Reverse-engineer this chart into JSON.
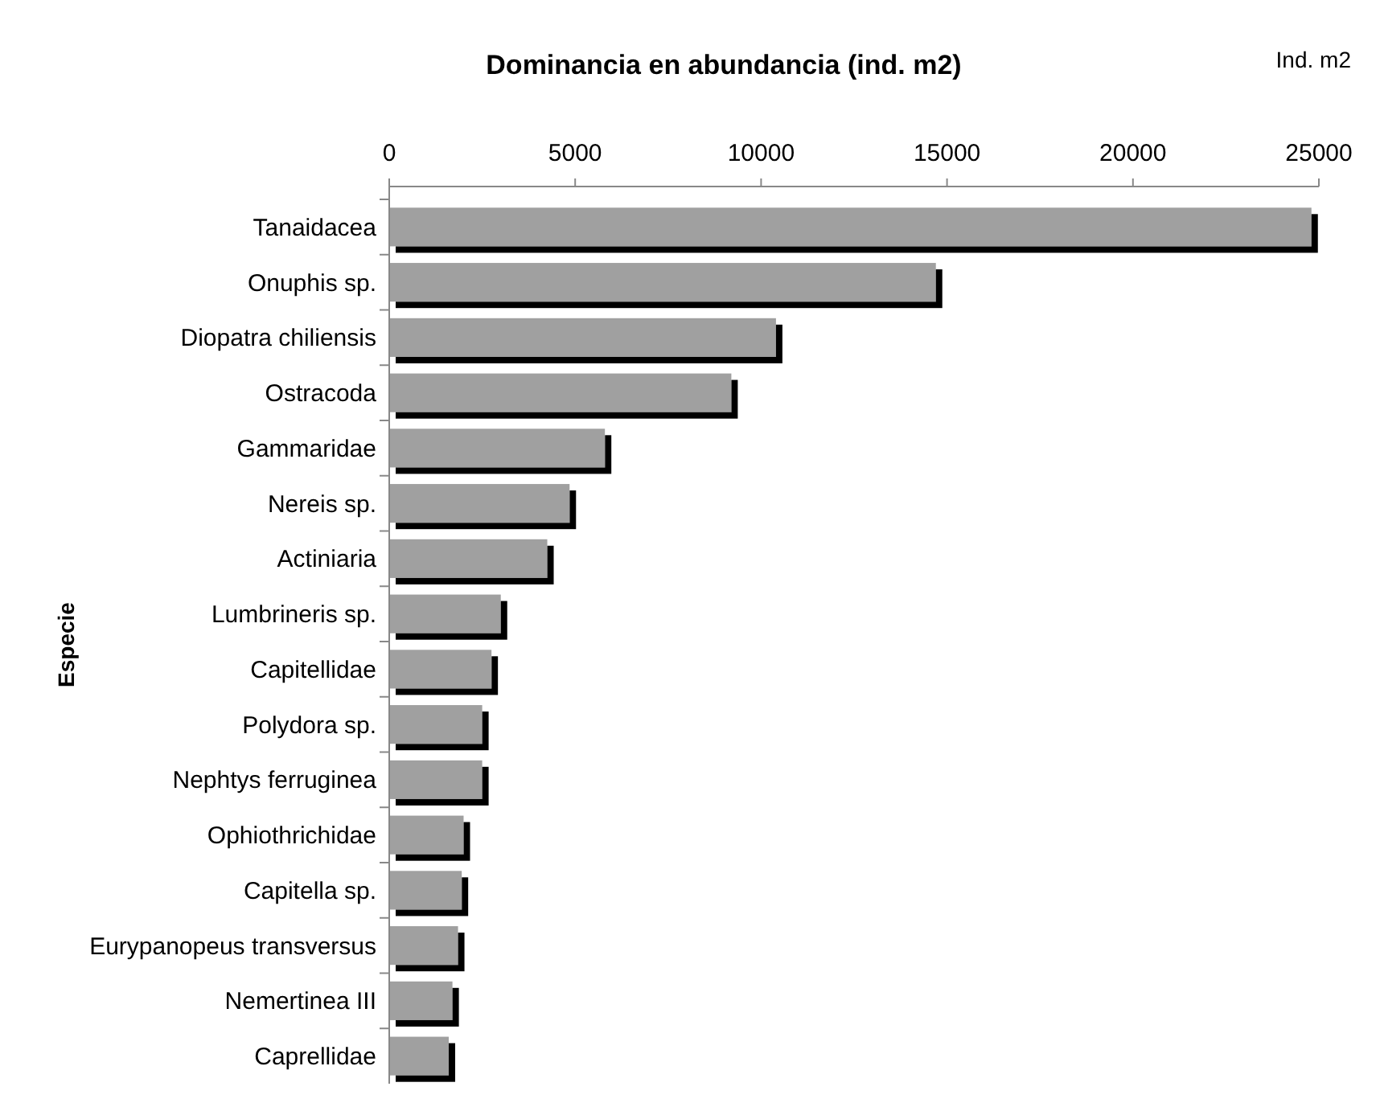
{
  "chart_data": {
    "type": "bar",
    "orientation": "horizontal",
    "title": "Dominancia en abundancia (ind. m2)",
    "xlabel": "Ind. m2",
    "ylabel": "Especie",
    "categories": [
      "Tanaidacea",
      "Onuphis sp.",
      "Diopatra chiliensis",
      "Ostracoda",
      "Gammaridae",
      "Nereis sp.",
      "Actiniaria",
      "Lumbrineris sp.",
      "Capitellidae",
      "Polydora sp.",
      "Nephtys ferruginea",
      "Ophiothrichidae",
      "Capitella sp.",
      "Eurypanopeus transversus",
      "Nemertinea III",
      "Caprellidae"
    ],
    "values": [
      24800,
      14700,
      10400,
      9200,
      5800,
      4850,
      4250,
      3000,
      2750,
      2500,
      2500,
      2000,
      1950,
      1850,
      1700,
      1600
    ],
    "color": "#a0a0a0",
    "xlim": [
      0,
      25000
    ],
    "xticks": [
      0,
      5000,
      10000,
      15000,
      20000,
      25000
    ],
    "grid": false
  }
}
